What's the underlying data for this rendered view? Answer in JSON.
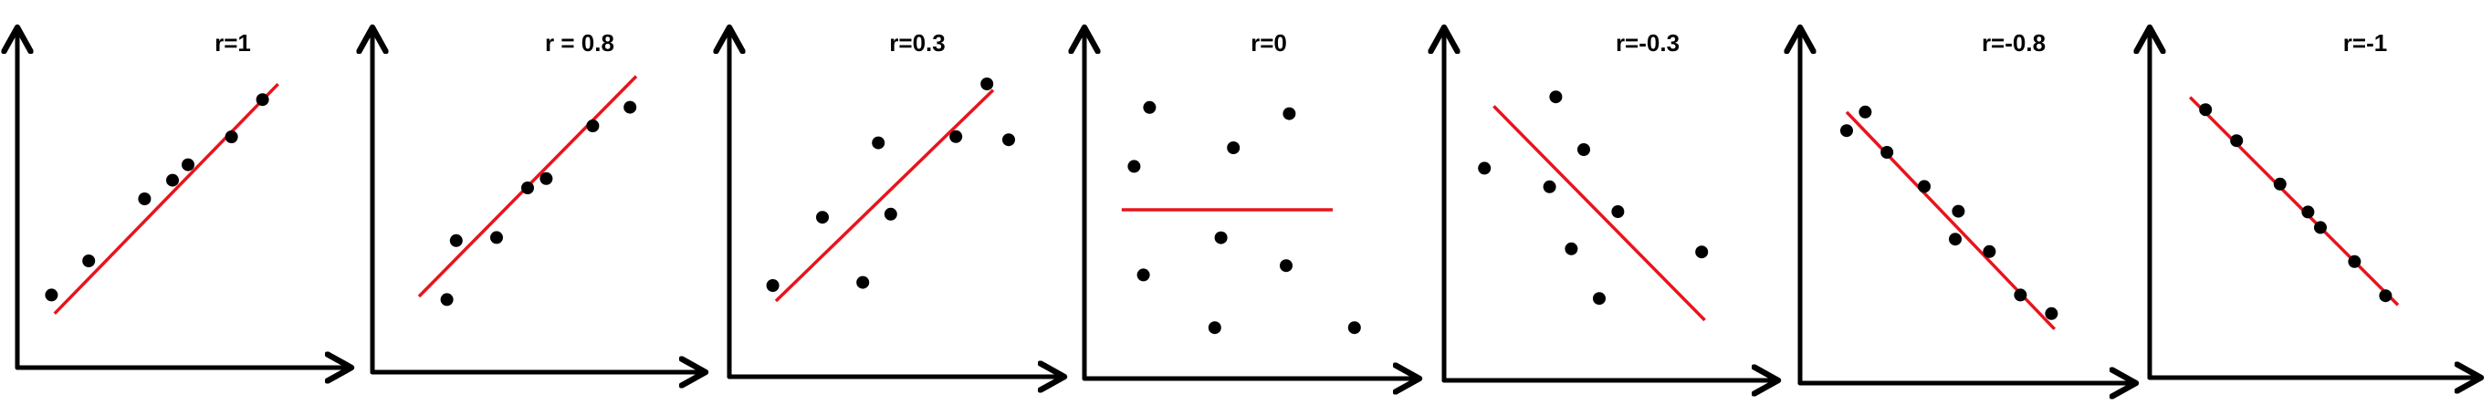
{
  "colors": {
    "axis": "#000000",
    "point": "#000000",
    "fit_line": "#e8141c"
  },
  "chart_data": [
    {
      "type": "scatter",
      "title": "r=1",
      "xlabel": "",
      "ylabel": "",
      "xlim": [
        0,
        10
      ],
      "ylim": [
        0,
        10
      ],
      "grid": false,
      "points": [
        [
          1.1,
          1.9
        ],
        [
          2.3,
          3.0
        ],
        [
          4.1,
          5.0
        ],
        [
          5.0,
          5.6
        ],
        [
          5.5,
          6.1
        ],
        [
          6.9,
          7.0
        ],
        [
          7.9,
          8.2
        ]
      ],
      "fit_line": [
        [
          1.2,
          1.3
        ],
        [
          8.4,
          8.7
        ]
      ]
    },
    {
      "type": "scatter",
      "title": "r = 0.8",
      "xlabel": "",
      "ylabel": "",
      "xlim": [
        0,
        10
      ],
      "ylim": [
        0,
        10
      ],
      "grid": false,
      "points": [
        [
          2.4,
          1.9
        ],
        [
          2.7,
          3.8
        ],
        [
          4.0,
          3.9
        ],
        [
          5.0,
          5.5
        ],
        [
          5.6,
          5.8
        ],
        [
          7.1,
          7.5
        ],
        [
          8.3,
          8.1
        ]
      ],
      "fit_line": [
        [
          1.5,
          2.0
        ],
        [
          8.5,
          9.1
        ]
      ]
    },
    {
      "type": "scatter",
      "title": "r=0.3",
      "xlabel": "",
      "ylabel": "",
      "xlim": [
        0,
        10
      ],
      "ylim": [
        0,
        10
      ],
      "grid": false,
      "points": [
        [
          1.4,
          2.5
        ],
        [
          3.0,
          4.7
        ],
        [
          4.3,
          2.6
        ],
        [
          4.8,
          7.1
        ],
        [
          5.2,
          4.8
        ],
        [
          7.3,
          7.3
        ],
        [
          8.3,
          9.0
        ],
        [
          9.0,
          7.2
        ]
      ],
      "fit_line": [
        [
          1.5,
          2.0
        ],
        [
          8.5,
          8.8
        ]
      ]
    },
    {
      "type": "scatter",
      "title": "r=0",
      "xlabel": "",
      "ylabel": "",
      "xlim": [
        0,
        10
      ],
      "ylim": [
        0,
        10
      ],
      "grid": false,
      "points": [
        [
          1.6,
          6.4
        ],
        [
          2.1,
          8.3
        ],
        [
          1.9,
          2.9
        ],
        [
          4.2,
          1.2
        ],
        [
          4.4,
          4.1
        ],
        [
          4.8,
          7.0
        ],
        [
          6.6,
          8.1
        ],
        [
          6.5,
          3.2
        ],
        [
          8.7,
          1.2
        ]
      ],
      "fit_line": [
        [
          1.2,
          5.0
        ],
        [
          8.0,
          5.0
        ]
      ]
    },
    {
      "type": "scatter",
      "title": "r=-0.3",
      "xlabel": "",
      "ylabel": "",
      "xlim": [
        0,
        10
      ],
      "ylim": [
        0,
        10
      ],
      "grid": false,
      "points": [
        [
          1.3,
          6.4
        ],
        [
          3.6,
          8.7
        ],
        [
          3.4,
          5.8
        ],
        [
          4.1,
          3.8
        ],
        [
          4.5,
          7.0
        ],
        [
          5.0,
          2.2
        ],
        [
          5.6,
          5.0
        ],
        [
          8.3,
          3.7
        ]
      ],
      "fit_line": [
        [
          1.6,
          8.4
        ],
        [
          8.4,
          1.5
        ]
      ]
    },
    {
      "type": "scatter",
      "title": "r=-0.8",
      "xlabel": "",
      "ylabel": "",
      "xlim": [
        0,
        10
      ],
      "ylim": [
        0,
        10
      ],
      "grid": false,
      "points": [
        [
          1.5,
          7.7
        ],
        [
          2.1,
          8.3
        ],
        [
          2.8,
          7.0
        ],
        [
          4.0,
          5.9
        ],
        [
          5.1,
          5.1
        ],
        [
          5.0,
          4.2
        ],
        [
          6.1,
          3.8
        ],
        [
          7.1,
          2.4
        ],
        [
          8.1,
          1.8
        ]
      ],
      "fit_line": [
        [
          1.5,
          8.3
        ],
        [
          8.2,
          1.3
        ]
      ]
    },
    {
      "type": "scatter",
      "title": "r=-1",
      "xlabel": "",
      "ylabel": "",
      "xlim": [
        0,
        10
      ],
      "ylim": [
        0,
        10
      ],
      "grid": false,
      "points": [
        [
          1.8,
          8.2
        ],
        [
          2.8,
          7.2
        ],
        [
          4.2,
          5.8
        ],
        [
          5.1,
          4.9
        ],
        [
          5.5,
          4.4
        ],
        [
          6.6,
          3.3
        ],
        [
          7.6,
          2.2
        ]
      ],
      "fit_line": [
        [
          1.3,
          8.6
        ],
        [
          8.0,
          1.9
        ]
      ]
    }
  ]
}
